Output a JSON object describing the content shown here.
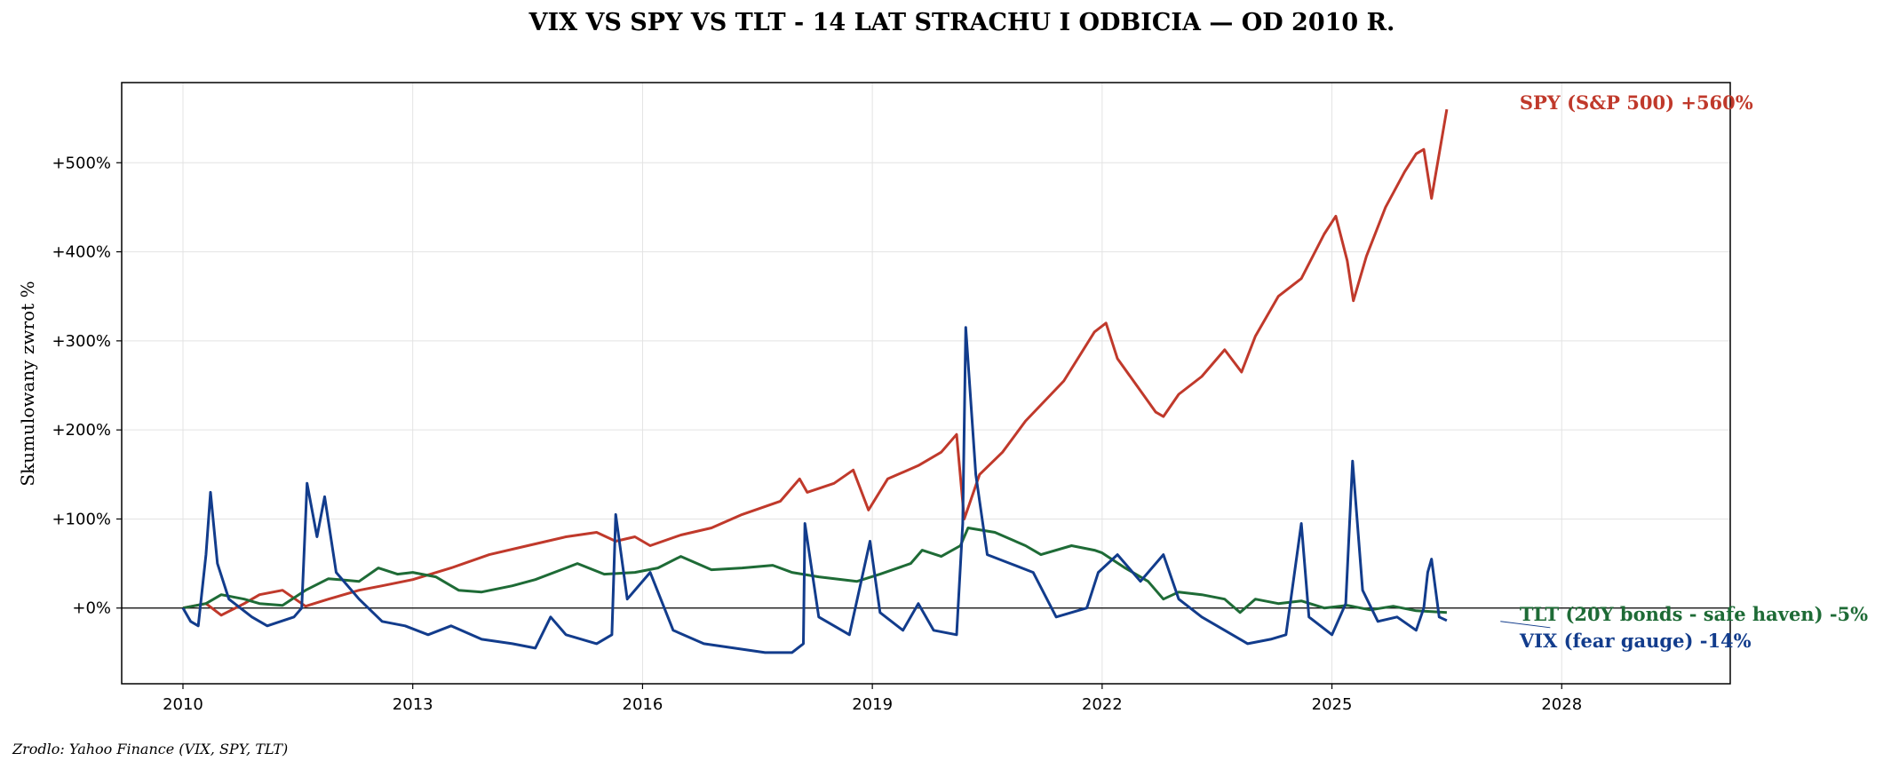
{
  "chart_data": {
    "type": "line",
    "title": "VIX VS SPY VS TLT - 14 LAT STRACHU I ODBICIA — OD 2010 R.",
    "xlabel": "",
    "ylabel": "Skumulowany zwrot %",
    "source": "Zrodlo: Yahoo Finance (VIX, SPY, TLT)",
    "xlim": [
      2009.2,
      2030.2
    ],
    "ylim": [
      -85,
      590
    ],
    "x_ticks": [
      2010,
      2013,
      2016,
      2019,
      2022,
      2025,
      2028
    ],
    "x_tick_labels": [
      "2010",
      "2013",
      "2016",
      "2019",
      "2022",
      "2025",
      "2028"
    ],
    "y_ticks": [
      0,
      100,
      200,
      300,
      400,
      500
    ],
    "y_tick_labels": [
      "+0%",
      "+100%",
      "+200%",
      "+300%",
      "+400%",
      "+500%"
    ],
    "grid": true,
    "zero_line": true,
    "series": [
      {
        "name": "SPY (S&P 500)",
        "end_label": "SPY (S&P 500)  +560%",
        "color": "#c0392b",
        "points": [
          [
            2010.0,
            0
          ],
          [
            2010.3,
            5
          ],
          [
            2010.5,
            -8
          ],
          [
            2010.8,
            5
          ],
          [
            2011.0,
            15
          ],
          [
            2011.3,
            20
          ],
          [
            2011.6,
            2
          ],
          [
            2011.9,
            10
          ],
          [
            2012.3,
            20
          ],
          [
            2012.6,
            25
          ],
          [
            2013.0,
            32
          ],
          [
            2013.5,
            45
          ],
          [
            2014.0,
            60
          ],
          [
            2014.5,
            70
          ],
          [
            2015.0,
            80
          ],
          [
            2015.4,
            85
          ],
          [
            2015.65,
            75
          ],
          [
            2015.9,
            80
          ],
          [
            2016.1,
            70
          ],
          [
            2016.5,
            82
          ],
          [
            2016.9,
            90
          ],
          [
            2017.3,
            105
          ],
          [
            2017.8,
            120
          ],
          [
            2018.05,
            145
          ],
          [
            2018.15,
            130
          ],
          [
            2018.5,
            140
          ],
          [
            2018.75,
            155
          ],
          [
            2018.95,
            110
          ],
          [
            2019.2,
            145
          ],
          [
            2019.6,
            160
          ],
          [
            2019.9,
            175
          ],
          [
            2020.1,
            195
          ],
          [
            2020.2,
            100
          ],
          [
            2020.4,
            150
          ],
          [
            2020.7,
            175
          ],
          [
            2021.0,
            210
          ],
          [
            2021.5,
            255
          ],
          [
            2021.9,
            310
          ],
          [
            2022.05,
            320
          ],
          [
            2022.2,
            280
          ],
          [
            2022.45,
            250
          ],
          [
            2022.7,
            220
          ],
          [
            2022.8,
            215
          ],
          [
            2023.0,
            240
          ],
          [
            2023.3,
            260
          ],
          [
            2023.6,
            290
          ],
          [
            2023.82,
            265
          ],
          [
            2024.0,
            305
          ],
          [
            2024.3,
            350
          ],
          [
            2024.6,
            370
          ],
          [
            2024.9,
            420
          ],
          [
            2025.05,
            440
          ],
          [
            2025.2,
            390
          ],
          [
            2025.28,
            345
          ],
          [
            2025.45,
            395
          ],
          [
            2025.7,
            450
          ],
          [
            2025.95,
            490
          ],
          [
            2026.1,
            510
          ],
          [
            2026.2,
            515
          ],
          [
            2026.3,
            460
          ],
          [
            2026.45,
            535
          ],
          [
            2026.5,
            560
          ]
        ]
      },
      {
        "name": "TLT (20Y bonds - safe haven)",
        "end_label": "TLT (20Y bonds - safe haven)  -5%",
        "color": "#1e6b36",
        "points": [
          [
            2010.0,
            0
          ],
          [
            2010.3,
            5
          ],
          [
            2010.5,
            15
          ],
          [
            2010.8,
            10
          ],
          [
            2011.0,
            5
          ],
          [
            2011.3,
            3
          ],
          [
            2011.6,
            20
          ],
          [
            2011.9,
            33
          ],
          [
            2012.3,
            30
          ],
          [
            2012.55,
            45
          ],
          [
            2012.8,
            38
          ],
          [
            2013.0,
            40
          ],
          [
            2013.3,
            35
          ],
          [
            2013.6,
            20
          ],
          [
            2013.9,
            18
          ],
          [
            2014.3,
            25
          ],
          [
            2014.6,
            32
          ],
          [
            2015.0,
            45
          ],
          [
            2015.15,
            50
          ],
          [
            2015.5,
            38
          ],
          [
            2015.9,
            40
          ],
          [
            2016.2,
            45
          ],
          [
            2016.5,
            58
          ],
          [
            2016.9,
            43
          ],
          [
            2017.3,
            45
          ],
          [
            2017.7,
            48
          ],
          [
            2017.95,
            40
          ],
          [
            2018.3,
            35
          ],
          [
            2018.8,
            30
          ],
          [
            2019.1,
            38
          ],
          [
            2019.5,
            50
          ],
          [
            2019.65,
            65
          ],
          [
            2019.9,
            58
          ],
          [
            2020.15,
            70
          ],
          [
            2020.25,
            90
          ],
          [
            2020.6,
            85
          ],
          [
            2021.0,
            70
          ],
          [
            2021.2,
            60
          ],
          [
            2021.6,
            70
          ],
          [
            2021.9,
            65
          ],
          [
            2022.0,
            62
          ],
          [
            2022.3,
            45
          ],
          [
            2022.6,
            30
          ],
          [
            2022.8,
            10
          ],
          [
            2023.0,
            18
          ],
          [
            2023.3,
            15
          ],
          [
            2023.6,
            10
          ],
          [
            2023.8,
            -5
          ],
          [
            2024.0,
            10
          ],
          [
            2024.3,
            5
          ],
          [
            2024.6,
            8
          ],
          [
            2024.9,
            0
          ],
          [
            2025.2,
            3
          ],
          [
            2025.5,
            -2
          ],
          [
            2025.8,
            2
          ],
          [
            2026.1,
            -3
          ],
          [
            2026.5,
            -5
          ]
        ]
      },
      {
        "name": "VIX (fear gauge)",
        "end_label": "VIX (fear gauge)  -14%",
        "color": "#123c8c",
        "points": [
          [
            2010.0,
            0
          ],
          [
            2010.1,
            -15
          ],
          [
            2010.2,
            -20
          ],
          [
            2010.3,
            60
          ],
          [
            2010.36,
            130
          ],
          [
            2010.45,
            50
          ],
          [
            2010.6,
            10
          ],
          [
            2010.9,
            -10
          ],
          [
            2011.1,
            -20
          ],
          [
            2011.45,
            -10
          ],
          [
            2011.55,
            0
          ],
          [
            2011.62,
            140
          ],
          [
            2011.75,
            80
          ],
          [
            2011.85,
            125
          ],
          [
            2012.0,
            40
          ],
          [
            2012.3,
            10
          ],
          [
            2012.6,
            -15
          ],
          [
            2012.9,
            -20
          ],
          [
            2013.2,
            -30
          ],
          [
            2013.5,
            -20
          ],
          [
            2013.9,
            -35
          ],
          [
            2014.3,
            -40
          ],
          [
            2014.6,
            -45
          ],
          [
            2014.8,
            -10
          ],
          [
            2015.0,
            -30
          ],
          [
            2015.4,
            -40
          ],
          [
            2015.6,
            -30
          ],
          [
            2015.65,
            105
          ],
          [
            2015.8,
            10
          ],
          [
            2016.1,
            40
          ],
          [
            2016.4,
            -25
          ],
          [
            2016.8,
            -40
          ],
          [
            2017.2,
            -45
          ],
          [
            2017.6,
            -50
          ],
          [
            2017.95,
            -50
          ],
          [
            2018.1,
            -40
          ],
          [
            2018.12,
            95
          ],
          [
            2018.3,
            -10
          ],
          [
            2018.7,
            -30
          ],
          [
            2018.97,
            75
          ],
          [
            2019.1,
            -5
          ],
          [
            2019.4,
            -25
          ],
          [
            2019.6,
            5
          ],
          [
            2019.8,
            -25
          ],
          [
            2020.1,
            -30
          ],
          [
            2020.18,
            95
          ],
          [
            2020.22,
            315
          ],
          [
            2020.35,
            150
          ],
          [
            2020.5,
            60
          ],
          [
            2020.8,
            50
          ],
          [
            2021.1,
            40
          ],
          [
            2021.4,
            -10
          ],
          [
            2021.8,
            0
          ],
          [
            2021.95,
            40
          ],
          [
            2022.2,
            60
          ],
          [
            2022.5,
            30
          ],
          [
            2022.8,
            60
          ],
          [
            2023.0,
            10
          ],
          [
            2023.3,
            -10
          ],
          [
            2023.6,
            -25
          ],
          [
            2023.9,
            -40
          ],
          [
            2024.2,
            -35
          ],
          [
            2024.4,
            -30
          ],
          [
            2024.6,
            95
          ],
          [
            2024.7,
            -10
          ],
          [
            2025.0,
            -30
          ],
          [
            2025.18,
            5
          ],
          [
            2025.27,
            165
          ],
          [
            2025.4,
            20
          ],
          [
            2025.6,
            -15
          ],
          [
            2025.85,
            -10
          ],
          [
            2026.1,
            -25
          ],
          [
            2026.2,
            0
          ],
          [
            2026.25,
            40
          ],
          [
            2026.3,
            55
          ],
          [
            2026.4,
            -10
          ],
          [
            2026.5,
            -14
          ]
        ]
      }
    ]
  }
}
